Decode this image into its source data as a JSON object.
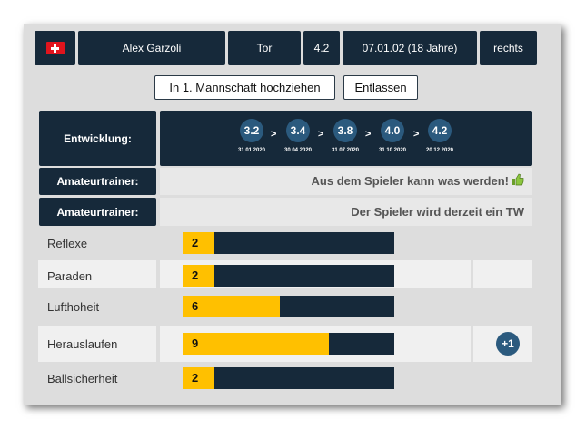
{
  "header": {
    "flag_icon": "swiss-flag-icon",
    "name": "Alex Garzoli",
    "position": "Tor",
    "rating": "4.2",
    "birthdate": "07.01.02 (18 Jahre)",
    "foot": "rechts"
  },
  "actions": {
    "promote_label": "In 1. Mannschaft hochziehen",
    "dismiss_label": "Entlassen"
  },
  "development": {
    "label": "Entwicklung:",
    "stages": [
      {
        "value": "3.2",
        "date": "31.01.2020"
      },
      {
        "value": "3.4",
        "date": "30.04.2020"
      },
      {
        "value": "3.8",
        "date": "31.07.2020"
      },
      {
        "value": "4.0",
        "date": "31.10.2020"
      },
      {
        "value": "4.2",
        "date": "20.12.2020"
      }
    ],
    "arrow": ">"
  },
  "trainer_comments": [
    {
      "label": "Amateurtrainer:",
      "text": "Aus dem Spieler kann was werden!",
      "icon": "thumbs-up-icon"
    },
    {
      "label": "Amateurtrainer:",
      "text": "Der Spieler wird derzeit ein TW"
    }
  ],
  "skills": [
    {
      "name": "Reflexe",
      "value": "2",
      "level_fraction": 0.15,
      "bonus": null
    },
    {
      "name": "Paraden",
      "value": "2",
      "level_fraction": 0.15,
      "bonus": null
    },
    {
      "name": "Lufthoheit",
      "value": "6",
      "level_fraction": 0.46,
      "bonus": null
    },
    {
      "name": "Herauslaufen",
      "value": "9",
      "level_fraction": 0.69,
      "bonus": "+1"
    },
    {
      "name": "Ballsicherheit",
      "value": "2",
      "level_fraction": 0.15,
      "bonus": null
    }
  ],
  "colors": {
    "dark": "#16293a",
    "bar_fill": "#ffc000",
    "badge": "#2b5a7e",
    "thumb": "#8cc63f"
  }
}
